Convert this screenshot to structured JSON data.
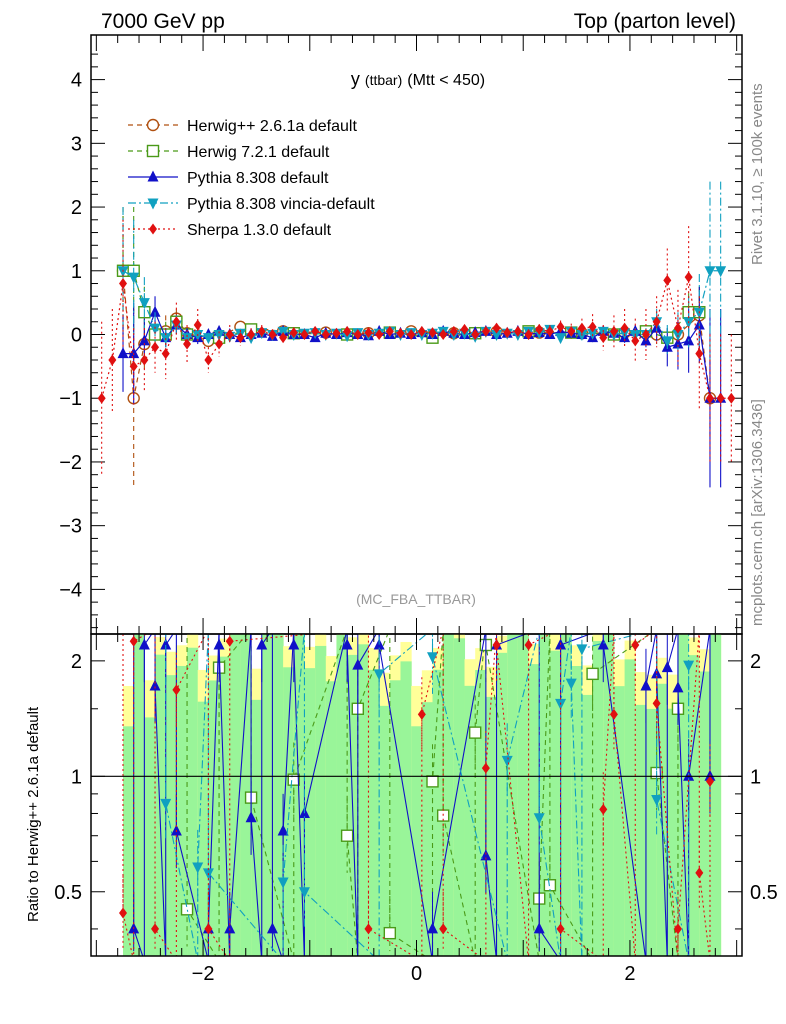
{
  "header": {
    "left": "7000 GeV pp",
    "right": "Top (parton level)"
  },
  "side_labels": {
    "rivet": "Rivet 3.1.10, ≥ 100k events",
    "mcplots": "mcplots.cern.ch [arXiv:1306.3436]"
  },
  "watermark": "(MC_FBA_TTBAR)",
  "chart_data": [
    {
      "type": "line",
      "panel": "main",
      "title": "y (ttbar) (Mtt < 450)",
      "title_main": "y",
      "title_sub": "(ttbar)",
      "title_tail": "(Mtt < 450)",
      "xlabel": "",
      "ylabel": "",
      "xlim": [
        -3.05,
        3.05
      ],
      "ylim": [
        -4.7,
        4.7
      ],
      "yticks": [
        -4,
        -3,
        -2,
        -1,
        0,
        1,
        2,
        3,
        4
      ],
      "yticklabels": [
        "−4",
        "−3",
        "−2",
        "−1",
        "0",
        "1",
        "2",
        "3",
        "4"
      ],
      "legend_position": "top-left",
      "series": [
        {
          "name": "Herwig++ 2.6.1a default",
          "color": "#b05010",
          "marker": "circle-open",
          "dash": "5,4",
          "x": [
            -2.75,
            -2.65,
            -2.55,
            -2.45,
            -2.35,
            -2.25,
            -2.15,
            -1.95,
            -1.65,
            -1.25,
            -0.85,
            -0.45,
            -0.05,
            0.35,
            0.75,
            1.15,
            1.55,
            1.95,
            2.25,
            2.45,
            2.65,
            2.75
          ],
          "y": [
            1.0,
            -1.0,
            -0.15,
            0.0,
            0.05,
            0.25,
            0.02,
            -0.1,
            0.12,
            0.05,
            0.03,
            0.02,
            0.05,
            0.02,
            0.04,
            0.03,
            0.02,
            0.03,
            0.0,
            0.0,
            0.3,
            -1.0
          ],
          "err": [
            1.0,
            1.4,
            0.4,
            0.2,
            0.25,
            0.15,
            0.1,
            0.1,
            0.08,
            0.05,
            0.05,
            0.05,
            0.05,
            0.05,
            0.05,
            0.05,
            0.05,
            0.08,
            0.15,
            0.2,
            0.3,
            0.6
          ]
        },
        {
          "name": "Herwig 7.2.1 default",
          "color": "#4a9a18",
          "marker": "square-open",
          "dash": "5,4",
          "x": [
            -2.75,
            -2.65,
            -2.55,
            -2.45,
            -2.35,
            -2.25,
            -2.15,
            -1.85,
            -1.55,
            -1.15,
            -0.65,
            -0.25,
            0.15,
            0.55,
            1.05,
            1.45,
            1.85,
            2.15,
            2.35,
            2.55,
            2.65
          ],
          "y": [
            1.0,
            1.0,
            0.35,
            0.0,
            0.0,
            0.2,
            0.0,
            -0.05,
            0.08,
            0.02,
            0.0,
            0.03,
            -0.05,
            0.02,
            0.05,
            0.03,
            0.0,
            0.05,
            -0.05,
            0.35,
            0.35
          ],
          "err": [
            1.0,
            1.0,
            0.4,
            0.2,
            0.2,
            0.15,
            0.1,
            0.08,
            0.06,
            0.05,
            0.05,
            0.05,
            0.05,
            0.05,
            0.05,
            0.05,
            0.05,
            0.08,
            0.15,
            0.3,
            0.4
          ]
        },
        {
          "name": "Pythia 8.308 default",
          "color": "#1010c8",
          "marker": "triangle-up",
          "dash": "",
          "x": [
            -2.75,
            -2.65,
            -2.55,
            -2.45,
            -2.35,
            -2.25,
            -2.15,
            -2.05,
            -1.95,
            -1.85,
            -1.75,
            -1.65,
            -1.55,
            -1.45,
            -1.35,
            -1.25,
            -1.15,
            -1.05,
            -0.95,
            -0.85,
            -0.75,
            -0.65,
            -0.55,
            -0.45,
            -0.35,
            -0.25,
            -0.15,
            -0.05,
            0.05,
            0.15,
            0.25,
            0.35,
            0.45,
            0.55,
            0.65,
            0.75,
            0.85,
            0.95,
            1.05,
            1.15,
            1.25,
            1.35,
            1.45,
            1.55,
            1.65,
            1.75,
            1.85,
            1.95,
            2.05,
            2.15,
            2.25,
            2.35,
            2.45,
            2.55,
            2.65,
            2.75,
            2.85
          ],
          "y": [
            -0.3,
            -0.3,
            -0.1,
            0.35,
            -0.05,
            0.15,
            0.0,
            -0.05,
            0.0,
            0.05,
            0.0,
            -0.05,
            0.0,
            0.02,
            -0.03,
            0.05,
            0.0,
            0.0,
            -0.05,
            0.02,
            0.0,
            0.03,
            0.0,
            -0.02,
            0.05,
            0.0,
            0.02,
            0.0,
            0.03,
            0.0,
            0.05,
            0.02,
            0.0,
            0.03,
            0.05,
            0.0,
            0.02,
            0.05,
            0.0,
            0.03,
            0.0,
            0.05,
            0.02,
            0.0,
            -0.05,
            0.05,
            0.02,
            -0.05,
            0.05,
            -0.1,
            0.1,
            -0.2,
            -0.15,
            -0.1,
            0.15,
            -1.0,
            -1.0
          ],
          "err": [
            0.6,
            0.8,
            0.35,
            0.25,
            0.15,
            0.15,
            0.1,
            0.1,
            0.08,
            0.08,
            0.07,
            0.07,
            0.06,
            0.06,
            0.06,
            0.06,
            0.05,
            0.05,
            0.05,
            0.05,
            0.05,
            0.05,
            0.05,
            0.05,
            0.05,
            0.05,
            0.05,
            0.05,
            0.05,
            0.05,
            0.05,
            0.05,
            0.05,
            0.05,
            0.05,
            0.05,
            0.05,
            0.05,
            0.05,
            0.05,
            0.06,
            0.06,
            0.06,
            0.06,
            0.07,
            0.07,
            0.08,
            0.08,
            0.1,
            0.1,
            0.2,
            0.3,
            0.4,
            0.5,
            0.6,
            1.4,
            1.4
          ]
        },
        {
          "name": "Pythia 8.308 vincia-default",
          "color": "#10a0c0",
          "marker": "triangle-down",
          "dash": "8,3,2,3",
          "x": [
            -2.75,
            -2.65,
            -2.55,
            -2.45,
            -2.35,
            -2.25,
            -2.15,
            -2.05,
            -1.95,
            -1.85,
            -1.75,
            -1.65,
            -1.55,
            -1.45,
            -1.35,
            -1.25,
            -1.15,
            -1.05,
            -0.95,
            -0.85,
            -0.75,
            -0.65,
            -0.55,
            -0.45,
            -0.35,
            -0.25,
            -0.15,
            -0.05,
            0.05,
            0.15,
            0.25,
            0.35,
            0.45,
            0.55,
            0.65,
            0.75,
            0.85,
            0.95,
            1.05,
            1.15,
            1.25,
            1.35,
            1.45,
            1.55,
            1.65,
            1.75,
            1.85,
            1.95,
            2.05,
            2.15,
            2.25,
            2.35,
            2.45,
            2.55,
            2.65,
            2.75,
            2.85
          ],
          "y": [
            1.0,
            0.9,
            0.5,
            0.1,
            -0.05,
            0.15,
            -0.05,
            0.0,
            -0.05,
            0.0,
            -0.03,
            0.02,
            -0.05,
            0.03,
            0.0,
            0.05,
            0.0,
            0.02,
            0.03,
            0.0,
            0.02,
            -0.02,
            0.03,
            0.0,
            0.02,
            0.05,
            0.0,
            0.03,
            0.0,
            0.02,
            0.05,
            0.0,
            0.02,
            -0.03,
            0.05,
            0.0,
            0.02,
            0.0,
            0.05,
            0.03,
            0.08,
            -0.05,
            0.05,
            0.0,
            0.02,
            0.05,
            0.0,
            0.03,
            0.0,
            0.0,
            0.2,
            -0.1,
            0.0,
            0.2,
            0.35,
            1.0,
            1.0
          ],
          "err": [
            1.0,
            0.9,
            0.4,
            0.25,
            0.15,
            0.15,
            0.1,
            0.1,
            0.08,
            0.08,
            0.07,
            0.07,
            0.06,
            0.06,
            0.06,
            0.06,
            0.05,
            0.05,
            0.05,
            0.05,
            0.05,
            0.05,
            0.05,
            0.05,
            0.05,
            0.05,
            0.05,
            0.05,
            0.05,
            0.05,
            0.05,
            0.05,
            0.05,
            0.05,
            0.05,
            0.05,
            0.05,
            0.05,
            0.05,
            0.05,
            0.06,
            0.06,
            0.06,
            0.06,
            0.07,
            0.07,
            0.08,
            0.08,
            0.1,
            0.1,
            0.2,
            0.25,
            0.35,
            0.4,
            0.6,
            1.4,
            1.4
          ]
        },
        {
          "name": "Sherpa 1.3.0 default",
          "color": "#e01010",
          "marker": "diamond",
          "dash": "2,3",
          "x": [
            -2.95,
            -2.85,
            -2.75,
            -2.65,
            -2.55,
            -2.45,
            -2.35,
            -2.25,
            -2.15,
            -2.05,
            -1.95,
            -1.85,
            -1.75,
            -1.65,
            -1.55,
            -1.45,
            -1.35,
            -1.25,
            -1.15,
            -1.05,
            -0.95,
            -0.85,
            -0.75,
            -0.65,
            -0.55,
            -0.45,
            -0.35,
            -0.25,
            -0.15,
            -0.05,
            0.05,
            0.15,
            0.25,
            0.35,
            0.45,
            0.55,
            0.65,
            0.75,
            0.85,
            0.95,
            1.05,
            1.15,
            1.25,
            1.35,
            1.45,
            1.55,
            1.65,
            1.75,
            1.85,
            1.95,
            2.05,
            2.15,
            2.25,
            2.35,
            2.45,
            2.55,
            2.65,
            2.75,
            2.85,
            2.95
          ],
          "y": [
            -1.0,
            -0.4,
            0.8,
            -0.5,
            -0.4,
            -0.2,
            -0.3,
            0.2,
            -0.15,
            0.15,
            -0.4,
            -0.15,
            0.0,
            -0.05,
            0.0,
            0.05,
            0.0,
            -0.05,
            0.03,
            0.0,
            0.05,
            0.0,
            0.02,
            0.05,
            0.0,
            0.03,
            0.0,
            0.05,
            0.02,
            0.0,
            0.05,
            0.03,
            0.0,
            0.05,
            0.08,
            0.0,
            0.05,
            0.1,
            0.03,
            0.05,
            0.0,
            0.08,
            0.05,
            0.12,
            0.05,
            0.1,
            0.12,
            -0.05,
            0.05,
            0.1,
            -0.1,
            0.0,
            0.2,
            0.85,
            0.1,
            0.9,
            -0.3,
            -1.0,
            -1.0,
            -1.0
          ],
          "err": [
            1.2,
            0.8,
            1.0,
            0.6,
            0.5,
            0.4,
            0.4,
            0.3,
            0.3,
            0.25,
            0.2,
            0.2,
            0.15,
            0.12,
            0.1,
            0.1,
            0.08,
            0.08,
            0.08,
            0.07,
            0.07,
            0.07,
            0.07,
            0.07,
            0.07,
            0.07,
            0.07,
            0.07,
            0.07,
            0.07,
            0.07,
            0.07,
            0.07,
            0.07,
            0.07,
            0.07,
            0.07,
            0.07,
            0.08,
            0.08,
            0.08,
            0.08,
            0.1,
            0.1,
            0.12,
            0.15,
            0.2,
            0.2,
            0.25,
            0.3,
            0.35,
            0.4,
            0.4,
            0.5,
            0.6,
            0.8,
            0.9,
            1.0,
            1.0,
            1.0
          ]
        }
      ]
    },
    {
      "type": "line",
      "panel": "ratio",
      "xlabel": "",
      "ylabel": "Ratio to Herwig++ 2.6.1a default",
      "xlim": [
        -3.05,
        3.05
      ],
      "ylim": [
        0.34,
        2.35
      ],
      "yscale": "log",
      "xticks": [
        -2,
        0,
        2
      ],
      "xticklabels": [
        "−2",
        "0",
        "2"
      ],
      "yticks": [
        0.5,
        1,
        2
      ],
      "yticklabels": [
        "0.5",
        "1",
        "2"
      ],
      "reference_line": 1,
      "band": {
        "x_start": -2.75,
        "x_end": 2.85,
        "bin_width": 0.1,
        "inner_color": "#99f599",
        "outer_color": "#ffff99"
      },
      "series": [
        {
          "name": "Herwig 7.2.1 default",
          "color": "#4a9a18",
          "marker": "square-open",
          "dash": "5,4",
          "x": [
            -2.15,
            -1.85,
            -1.55,
            -1.15,
            -0.65,
            -0.55,
            -0.25,
            0.15,
            0.25,
            0.55,
            0.65,
            1.15,
            1.25,
            1.65,
            2.25,
            2.45
          ],
          "y": [
            0.45,
            1.92,
            0.88,
            0.98,
            0.7,
            1.5,
            0.39,
            0.97,
            0.79,
            1.3,
            2.2,
            0.48,
            0.52,
            1.85,
            1.02,
            1.5
          ]
        },
        {
          "name": "Pythia 8.308 default",
          "color": "#1010c8",
          "marker": "triangle-up",
          "dash": "",
          "x": [
            -2.65,
            -2.55,
            -2.45,
            -2.35,
            -2.25,
            -1.95,
            -1.85,
            -1.75,
            -1.55,
            -1.45,
            -1.35,
            -1.25,
            -1.15,
            -1.05,
            -0.65,
            -0.55,
            -0.35,
            0.15,
            0.65,
            0.75,
            1.15,
            1.35,
            1.75,
            2.15,
            2.25,
            2.35,
            2.45,
            2.55,
            2.75
          ],
          "y": [
            0.4,
            2.2,
            1.72,
            2.2,
            0.72,
            0.4,
            2.2,
            0.4,
            0.78,
            2.2,
            0.4,
            0.72,
            2.2,
            0.8,
            2.2,
            1.95,
            2.2,
            0.4,
            0.62,
            2.2,
            0.4,
            2.2,
            2.2,
            1.72,
            1.85,
            1.92,
            1.7,
            1.0,
            1.0
          ]
        },
        {
          "name": "Pythia 8.308 vincia-default",
          "color": "#10a0c0",
          "marker": "triangle-down",
          "dash": "8,3,2,3",
          "x": [
            -2.35,
            -2.05,
            -1.95,
            -1.25,
            -1.05,
            -0.35,
            0.15,
            0.85,
            1.15,
            1.35,
            1.45,
            1.55,
            2.25,
            2.55
          ],
          "y": [
            0.85,
            0.58,
            0.56,
            0.53,
            0.5,
            1.85,
            2.05,
            1.1,
            0.78,
            1.55,
            1.75,
            2.15,
            0.87,
            1.95
          ]
        },
        {
          "name": "Sherpa 1.3.0 default",
          "color": "#e01010",
          "marker": "diamond",
          "dash": "2,3",
          "x": [
            -2.75,
            -2.65,
            -2.45,
            -2.25,
            -1.95,
            -1.75,
            -0.45,
            0.05,
            0.25,
            0.65,
            0.75,
            1.05,
            1.35,
            1.75,
            1.85,
            2.05,
            2.25,
            2.45,
            2.65,
            2.75
          ],
          "y": [
            0.44,
            2.25,
            0.4,
            1.68,
            0.4,
            2.25,
            0.4,
            1.45,
            0.4,
            1.05,
            2.2,
            2.2,
            0.4,
            0.82,
            1.45,
            2.2,
            1.55,
            0.4,
            0.56,
            0.97
          ]
        }
      ]
    }
  ]
}
